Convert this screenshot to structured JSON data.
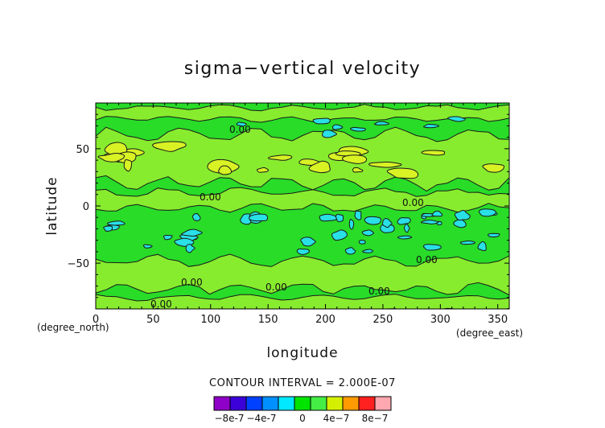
{
  "chart_data": {
    "type": "heatmap",
    "title": "sigma−vertical velocity",
    "xlabel": "longitude",
    "ylabel": "latitude",
    "x_unit": "(degree_east)",
    "y_unit": "(degree_north)",
    "xlim": [
      0,
      360
    ],
    "ylim": [
      -90,
      90
    ],
    "x_ticks": [
      0,
      50,
      100,
      150,
      200,
      250,
      300,
      350
    ],
    "y_ticks": [
      50,
      0,
      -50
    ],
    "contour_interval_text": "CONTOUR INTERVAL = 2.000E-07",
    "contour_line_labels": [
      "0.00",
      "0.00",
      "0.00",
      "0.00",
      "0.00",
      "0.00",
      "0.00",
      "0.00"
    ],
    "colorbar": {
      "colors": [
        "#8f00c8",
        "#3c00d8",
        "#0040ff",
        "#0090ff",
        "#00e8ff",
        "#00e400",
        "#44ee44",
        "#d4f000",
        "#ff9a00",
        "#ff2020",
        "#ffa8b0"
      ],
      "tick_labels": [
        "-8e-7",
        "-4e-7",
        "0",
        "4e-7",
        "8e-7"
      ]
    },
    "field_colors": {
      "background": "#28dc28",
      "positive": "#88ec2e",
      "strong_positive": "#d8f224",
      "negative": "#28e0e6",
      "contour": "#1a1a1a"
    }
  }
}
